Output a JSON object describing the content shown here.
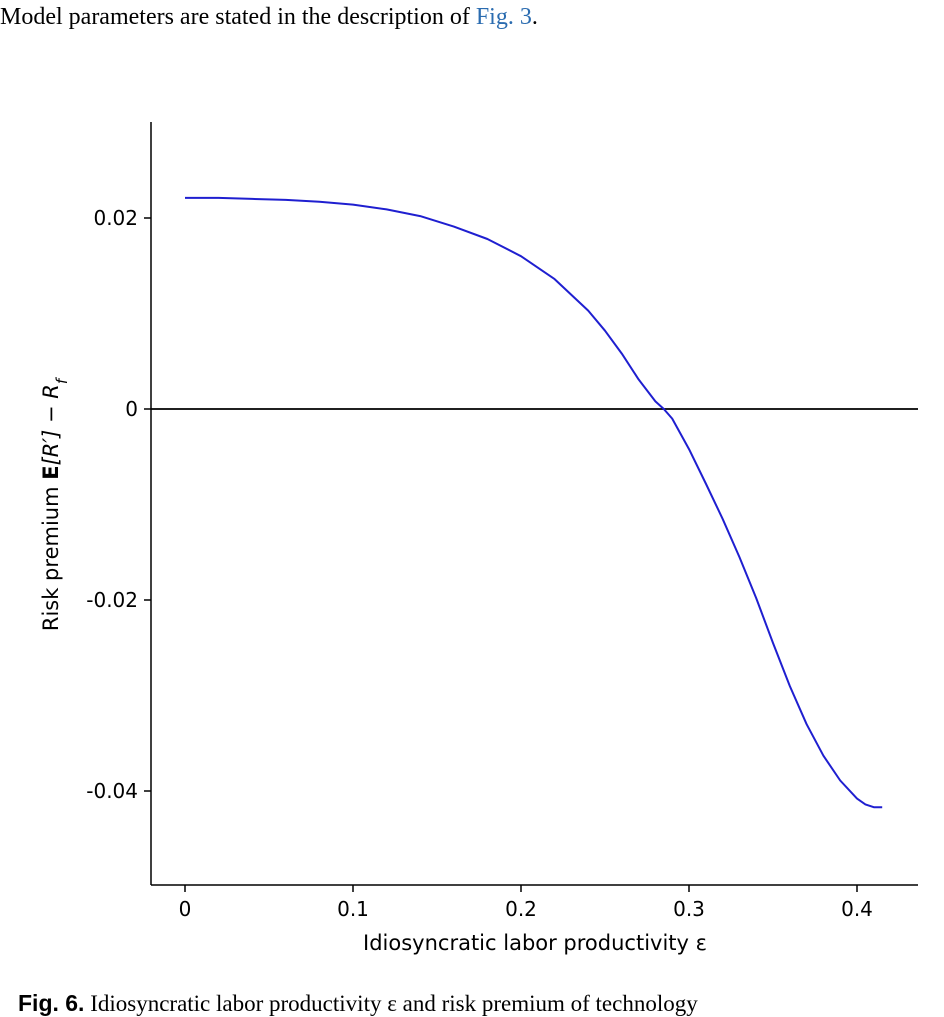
{
  "top_text": {
    "prefix": "Model parameters are stated in the description of ",
    "link": "Fig. 3",
    "suffix": "."
  },
  "caption": {
    "fig_label": "Fig. 6.",
    "text": " Idiosyncratic labor productivity ε and risk premium of technology"
  },
  "colors": {
    "curve": "#1f1fd0",
    "axis": "#000000",
    "link": "#2b6cb0"
  },
  "chart_data": {
    "type": "line",
    "xlabel": "Idiosyncratic labor productivity ε",
    "ylabel_parts": {
      "text": "Risk premium ",
      "bold": "E",
      "math": "[R′] − R",
      "sub": "f"
    },
    "xlim": [
      -0.02,
      0.435
    ],
    "ylim": [
      -0.05,
      0.03
    ],
    "xticks": [
      0,
      0.1,
      0.2,
      0.3,
      0.4
    ],
    "xtick_labels": [
      "0",
      "0.1",
      "0.2",
      "0.3",
      "0.4"
    ],
    "yticks": [
      0.02,
      0,
      -0.02,
      -0.04
    ],
    "ytick_labels": [
      "0.02",
      "0",
      "-0.02",
      "-0.04"
    ],
    "hline_y": 0,
    "series": [
      {
        "x": [
          0,
          0.02,
          0.04,
          0.06,
          0.08,
          0.1,
          0.12,
          0.14,
          0.16,
          0.18,
          0.2,
          0.22,
          0.24,
          0.25,
          0.26,
          0.27,
          0.28,
          0.285,
          0.29,
          0.3,
          0.31,
          0.32,
          0.33,
          0.34,
          0.35,
          0.36,
          0.37,
          0.38,
          0.39,
          0.4,
          0.405,
          0.41,
          0.415
        ],
        "y": [
          0.0221,
          0.0221,
          0.022,
          0.0219,
          0.0217,
          0.0214,
          0.0209,
          0.0202,
          0.0191,
          0.0178,
          0.016,
          0.0136,
          0.0103,
          0.0082,
          0.0058,
          0.0031,
          0.0008,
          0.0,
          -0.001,
          -0.0042,
          -0.0078,
          -0.0115,
          -0.0155,
          -0.0198,
          -0.0245,
          -0.029,
          -0.033,
          -0.0363,
          -0.0389,
          -0.0408,
          -0.0414,
          -0.0417,
          -0.0417
        ]
      }
    ]
  }
}
